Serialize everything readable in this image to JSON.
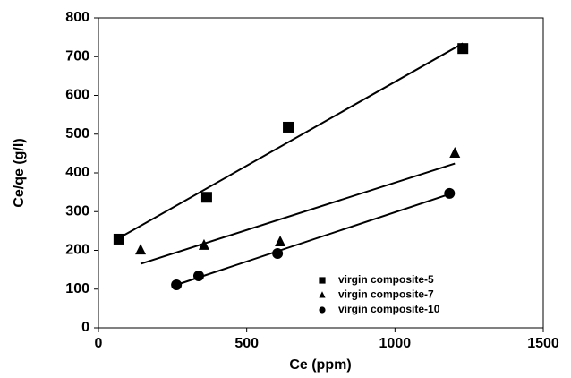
{
  "chart_data": {
    "type": "scatter",
    "xlabel": "Ce (ppm)",
    "ylabel": "Ce/qe (g/l)",
    "xlim": [
      0,
      1500
    ],
    "xticks": [
      0,
      500,
      1000,
      1500
    ],
    "ylim": [
      0,
      800
    ],
    "yticks": [
      0,
      100,
      200,
      300,
      400,
      500,
      600,
      700,
      800
    ],
    "grid": false,
    "trendline": true,
    "legend": "lower right",
    "series": [
      {
        "name": "virgin composite-5",
        "marker": "square",
        "color": "#000000",
        "x": [
          69,
          365,
          640,
          1229
        ],
        "values": [
          229,
          337,
          518,
          721
        ]
      },
      {
        "name": "virgin composite-7",
        "marker": "triangle",
        "color": "#000000",
        "x": [
          142,
          356,
          613,
          1202
        ],
        "values": [
          201,
          213,
          222,
          451
        ]
      },
      {
        "name": "virgin composite-10",
        "marker": "circle",
        "color": "#000000",
        "x": [
          263,
          338,
          604,
          1184
        ],
        "values": [
          111,
          134,
          192,
          347
        ]
      }
    ]
  }
}
